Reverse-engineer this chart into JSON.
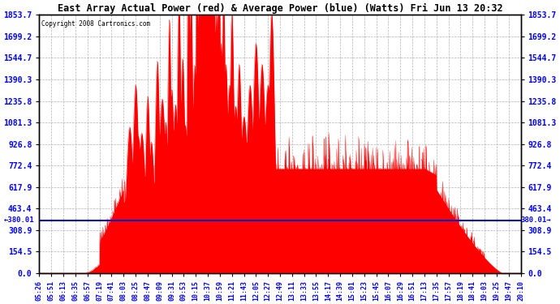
{
  "title": "East Array Actual Power (red) & Average Power (blue) (Watts) Fri Jun 13 20:32",
  "copyright": "Copyright 2008 Cartronics.com",
  "avg_power": 380.01,
  "y_max": 1853.7,
  "y_min": 0.0,
  "y_ticks": [
    0.0,
    154.5,
    308.9,
    463.4,
    617.9,
    772.4,
    926.8,
    1081.3,
    1235.8,
    1390.3,
    1544.7,
    1699.2,
    1853.7
  ],
  "x_labels": [
    "05:26",
    "05:51",
    "06:13",
    "06:35",
    "06:57",
    "07:19",
    "07:41",
    "08:03",
    "08:25",
    "08:47",
    "09:09",
    "09:31",
    "09:53",
    "10:15",
    "10:37",
    "10:59",
    "11:21",
    "11:43",
    "12:05",
    "12:27",
    "12:49",
    "13:11",
    "13:33",
    "13:55",
    "14:17",
    "14:39",
    "15:01",
    "15:23",
    "15:45",
    "16:07",
    "16:29",
    "16:51",
    "17:13",
    "17:35",
    "17:57",
    "18:19",
    "18:41",
    "19:03",
    "19:25",
    "19:47",
    "20:10"
  ],
  "background_color": "#ffffff",
  "plot_bg_color": "#ffffff",
  "grid_color": "#aaaaaa",
  "red_color": "#ff0000",
  "blue_color": "#0000cc",
  "title_color": "#000000"
}
